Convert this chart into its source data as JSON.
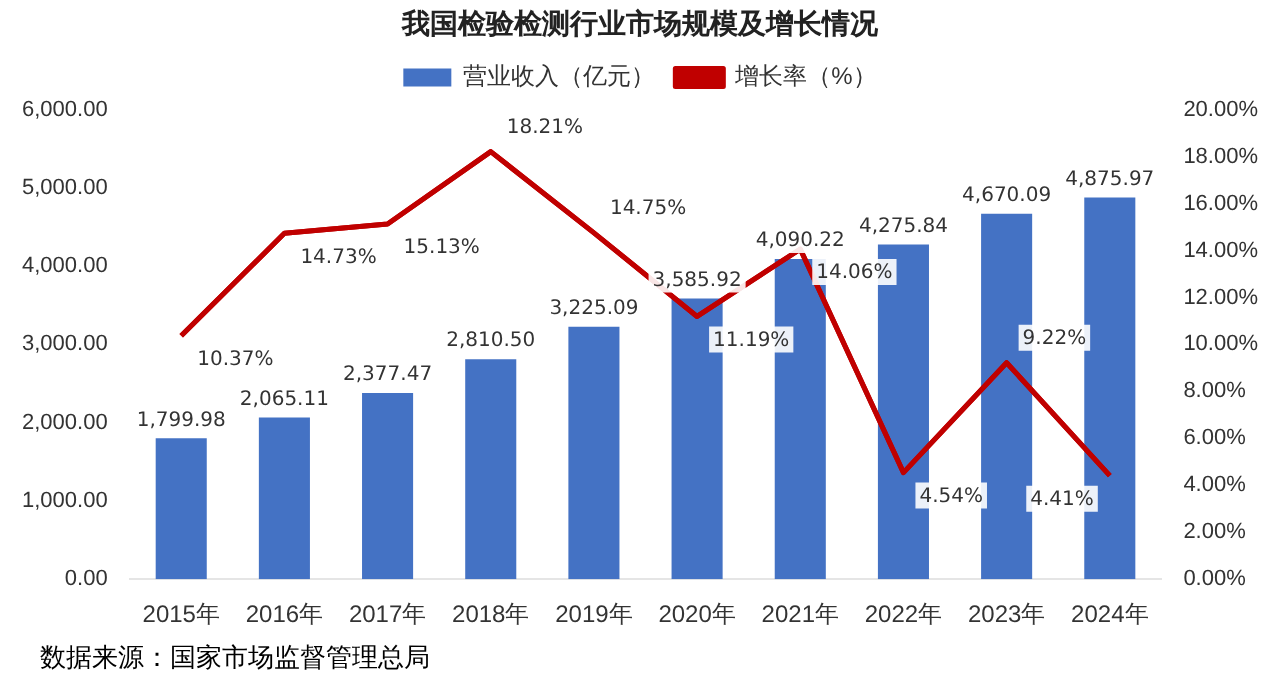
{
  "chart_data": {
    "type": "bar",
    "title": "我国检验检测行业市场规模及增长情况",
    "categories": [
      "2015年",
      "2016年",
      "2017年",
      "2018年",
      "2019年",
      "2020年",
      "2021年",
      "2022年",
      "2023年",
      "2024年"
    ],
    "series": [
      {
        "name": "营业收入（亿元）",
        "color": "#4472c4",
        "values": [
          1799.98,
          2065.11,
          2377.47,
          2810.5,
          3225.09,
          3585.92,
          4090.22,
          4275.84,
          4670.09,
          4875.97
        ],
        "value_labels": [
          "1,799.98",
          "2,065.11",
          "2,377.47",
          "2,810.50",
          "3,225.09",
          "3,585.92",
          "4,090.22",
          "4,275.84",
          "4,670.09",
          "4,875.97"
        ]
      },
      {
        "name": "增长率（%）",
        "type": "line",
        "axis": "y2",
        "color": "#c00000",
        "values": [
          10.37,
          14.73,
          15.13,
          18.21,
          14.75,
          11.19,
          14.06,
          4.54,
          9.22,
          4.41
        ],
        "value_labels": [
          "10.37%",
          "14.73%",
          "15.13%",
          "18.21%",
          "14.75%",
          "11.19%",
          "14.06%",
          "4.54%",
          "9.22%",
          "4.41%"
        ]
      }
    ],
    "ylim": [
      0,
      6000
    ],
    "yticks": [
      {
        "value": 0,
        "label": "0.00"
      },
      {
        "value": 1000,
        "label": "1,000.00"
      },
      {
        "value": 2000,
        "label": "2,000.00"
      },
      {
        "value": 3000,
        "label": "3,000.00"
      },
      {
        "value": 4000,
        "label": "4,000.00"
      },
      {
        "value": 5000,
        "label": "5,000.00"
      },
      {
        "value": 6000,
        "label": "6,000.00"
      }
    ],
    "y2lim": [
      0,
      20
    ],
    "y2ticks": [
      {
        "value": 0,
        "label": "0.00%"
      },
      {
        "value": 2,
        "label": "2.00%"
      },
      {
        "value": 4,
        "label": "4.00%"
      },
      {
        "value": 6,
        "label": "6.00%"
      },
      {
        "value": 8,
        "label": "8.00%"
      },
      {
        "value": 10,
        "label": "10.00%"
      },
      {
        "value": 12,
        "label": "12.00%"
      },
      {
        "value": 14,
        "label": "14.00%"
      },
      {
        "value": 16,
        "label": "16.00%"
      },
      {
        "value": 18,
        "label": "18.00%"
      },
      {
        "value": 20,
        "label": "20.00%"
      }
    ],
    "legend": "top",
    "grid": false,
    "marker": "none",
    "line_style": "solid",
    "annotations": [
      "数据来源：国家市场监督管理总局"
    ]
  }
}
